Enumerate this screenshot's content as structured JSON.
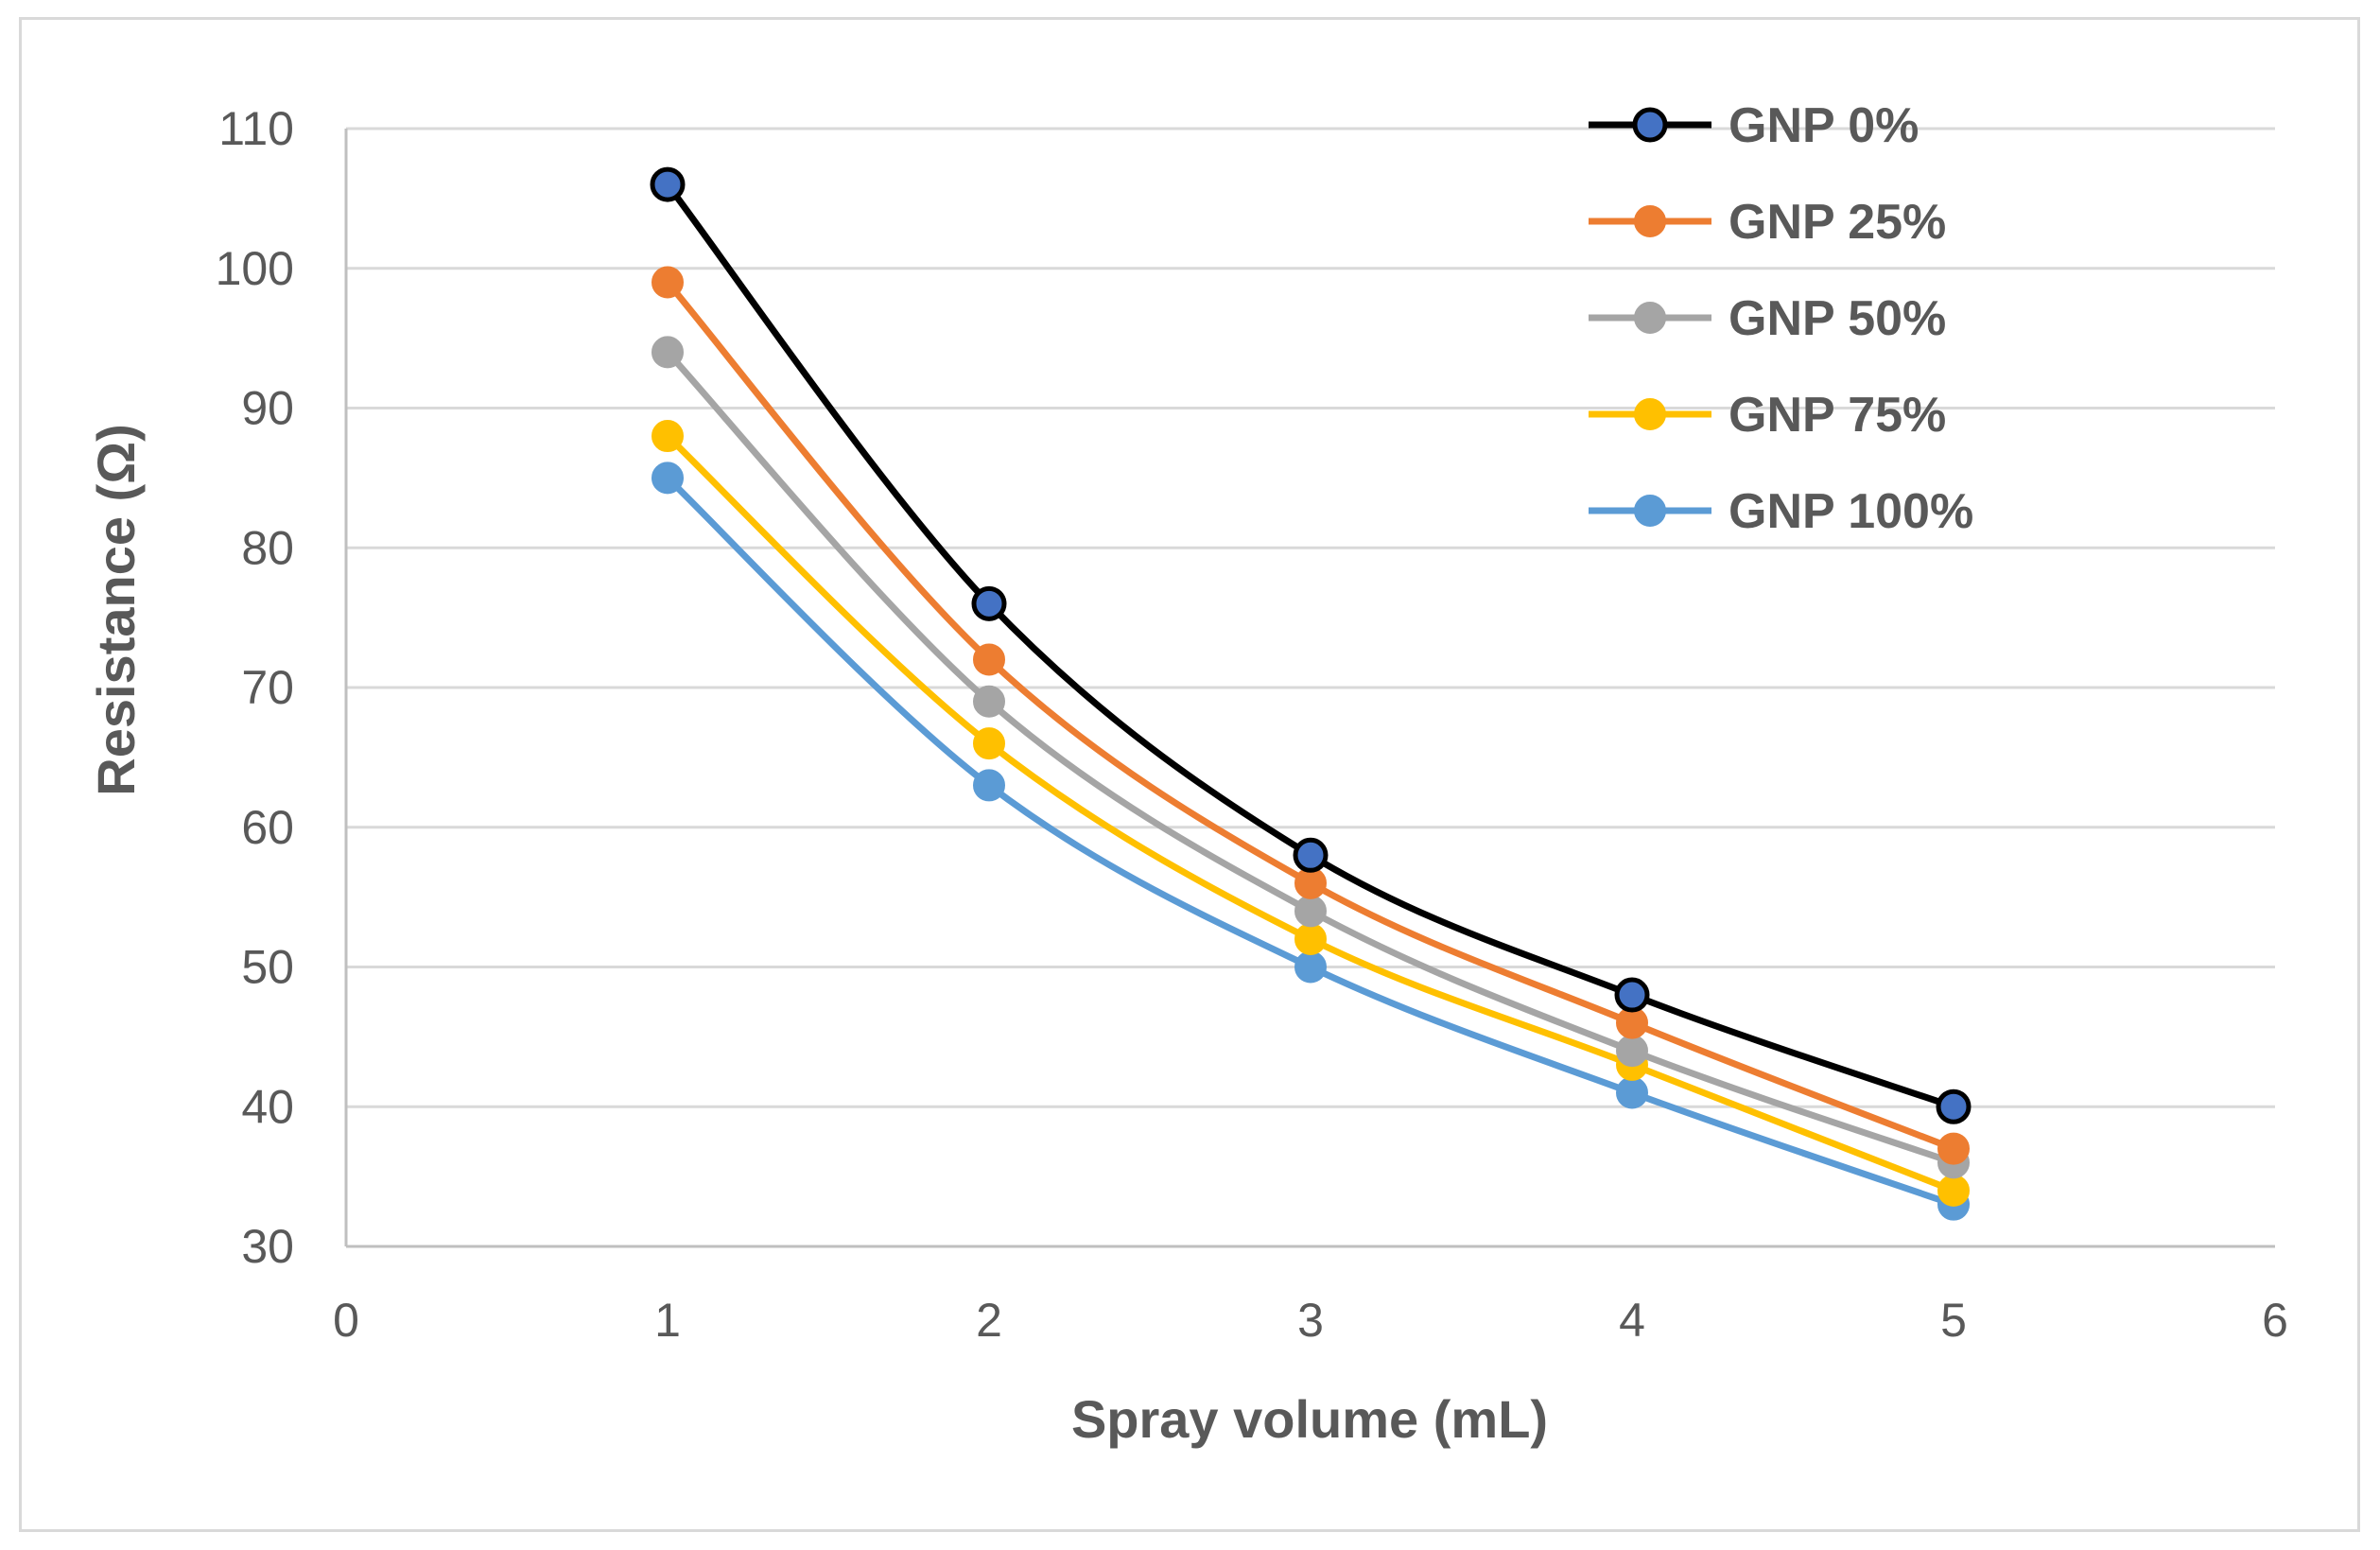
{
  "chart_data": {
    "type": "line",
    "title": "",
    "xlabel": "Spray volume (mL)",
    "ylabel": "Resistance (Ω)",
    "xlim": [
      0,
      6
    ],
    "ylim": [
      30,
      110
    ],
    "xticks": [
      0,
      1,
      2,
      3,
      4,
      5,
      6
    ],
    "yticks": [
      30,
      40,
      50,
      60,
      70,
      80,
      90,
      100,
      110
    ],
    "grid": "horizontal",
    "smooth": true,
    "legend_position": "top-right",
    "x": [
      1,
      2,
      3,
      4,
      5
    ],
    "series": [
      {
        "name": "GNP 0%",
        "values": [
          106,
          76,
          58,
          48,
          40
        ],
        "line_color": "#000000",
        "marker_color": "#4472c4",
        "marker_edge": "#000000"
      },
      {
        "name": "GNP 25%",
        "values": [
          99,
          72,
          56,
          46,
          37
        ],
        "line_color": "#ed7d31",
        "marker_color": "#ed7d31",
        "marker_edge": "#ed7d31"
      },
      {
        "name": "GNP 50%",
        "values": [
          94,
          69,
          54,
          44,
          36
        ],
        "line_color": "#a5a5a5",
        "marker_color": "#a5a5a5",
        "marker_edge": "#a5a5a5"
      },
      {
        "name": "GNP 75%",
        "values": [
          88,
          66,
          52,
          43,
          34
        ],
        "line_color": "#ffc000",
        "marker_color": "#ffc000",
        "marker_edge": "#ffc000"
      },
      {
        "name": "GNP 100%",
        "values": [
          85,
          63,
          50,
          41,
          33
        ],
        "line_color": "#5b9bd5",
        "marker_color": "#5b9bd5",
        "marker_edge": "#5b9bd5"
      }
    ]
  }
}
